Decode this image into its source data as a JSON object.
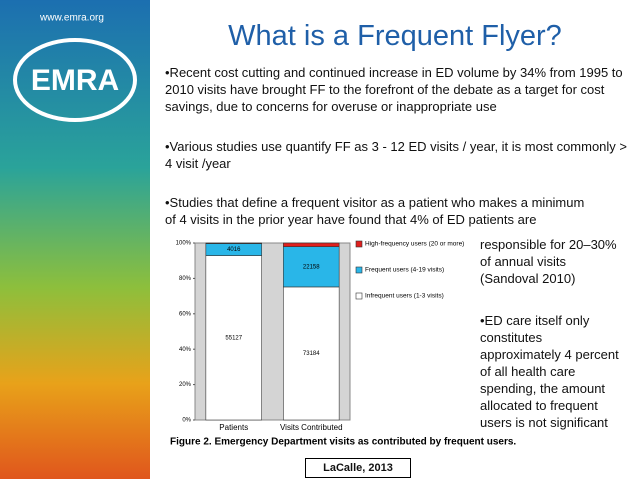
{
  "slide": {
    "site": "www.emra.org",
    "logo": "EMRA",
    "title": "What is a Frequent Flyer?",
    "bullets": [
      "•Recent cost cutting and continued increase in ED volume by 34% from 1995 to 2010 visits have brought FF to the forefront of the debate as a target for cost savings, due to concerns for overuse or inappropriate use",
      "•Various studies use quantify FF as 3 - 12 ED visits / year, it is most commonly > 4 visit /year",
      "•Studies that define a frequent visitor as a patient who makes a minimum of 4 visits in the prior year have found that 4% of ED patients are"
    ],
    "side_text": [
      "responsible for 20–30% of annual visits (Sandoval 2010)",
      "•ED care itself only constitutes approximately 4 percent of all health care spending, the amount allocated to frequent users is not significant"
    ],
    "citation": "LaCalle, 2013"
  },
  "chart_data": {
    "type": "stacked100",
    "caption": "Figure 2. Emergency Department visits as contributed by frequent users.",
    "categories": [
      "Patients",
      "Visits Contributed"
    ],
    "series": [
      {
        "name": "Infrequent users (1-3 visits)",
        "color": "#ffffff",
        "values": [
          55127,
          73184
        ]
      },
      {
        "name": "Frequent users (4-19 visits)",
        "color": "#29b6e8",
        "values": [
          4016,
          22158
        ]
      },
      {
        "name": "High-frequency users (20 or more)",
        "color": "#e0201e",
        "values": [
          200,
          2000
        ]
      }
    ],
    "ylim": [
      0,
      100
    ],
    "yticks": [
      {
        "value": 0,
        "label": "0%"
      },
      {
        "value": 20,
        "label": "20%"
      },
      {
        "value": 40,
        "label": "40%"
      },
      {
        "value": 60,
        "label": "60%"
      },
      {
        "value": 80,
        "label": "80%"
      },
      {
        "value": 100,
        "label": "100%"
      }
    ]
  }
}
